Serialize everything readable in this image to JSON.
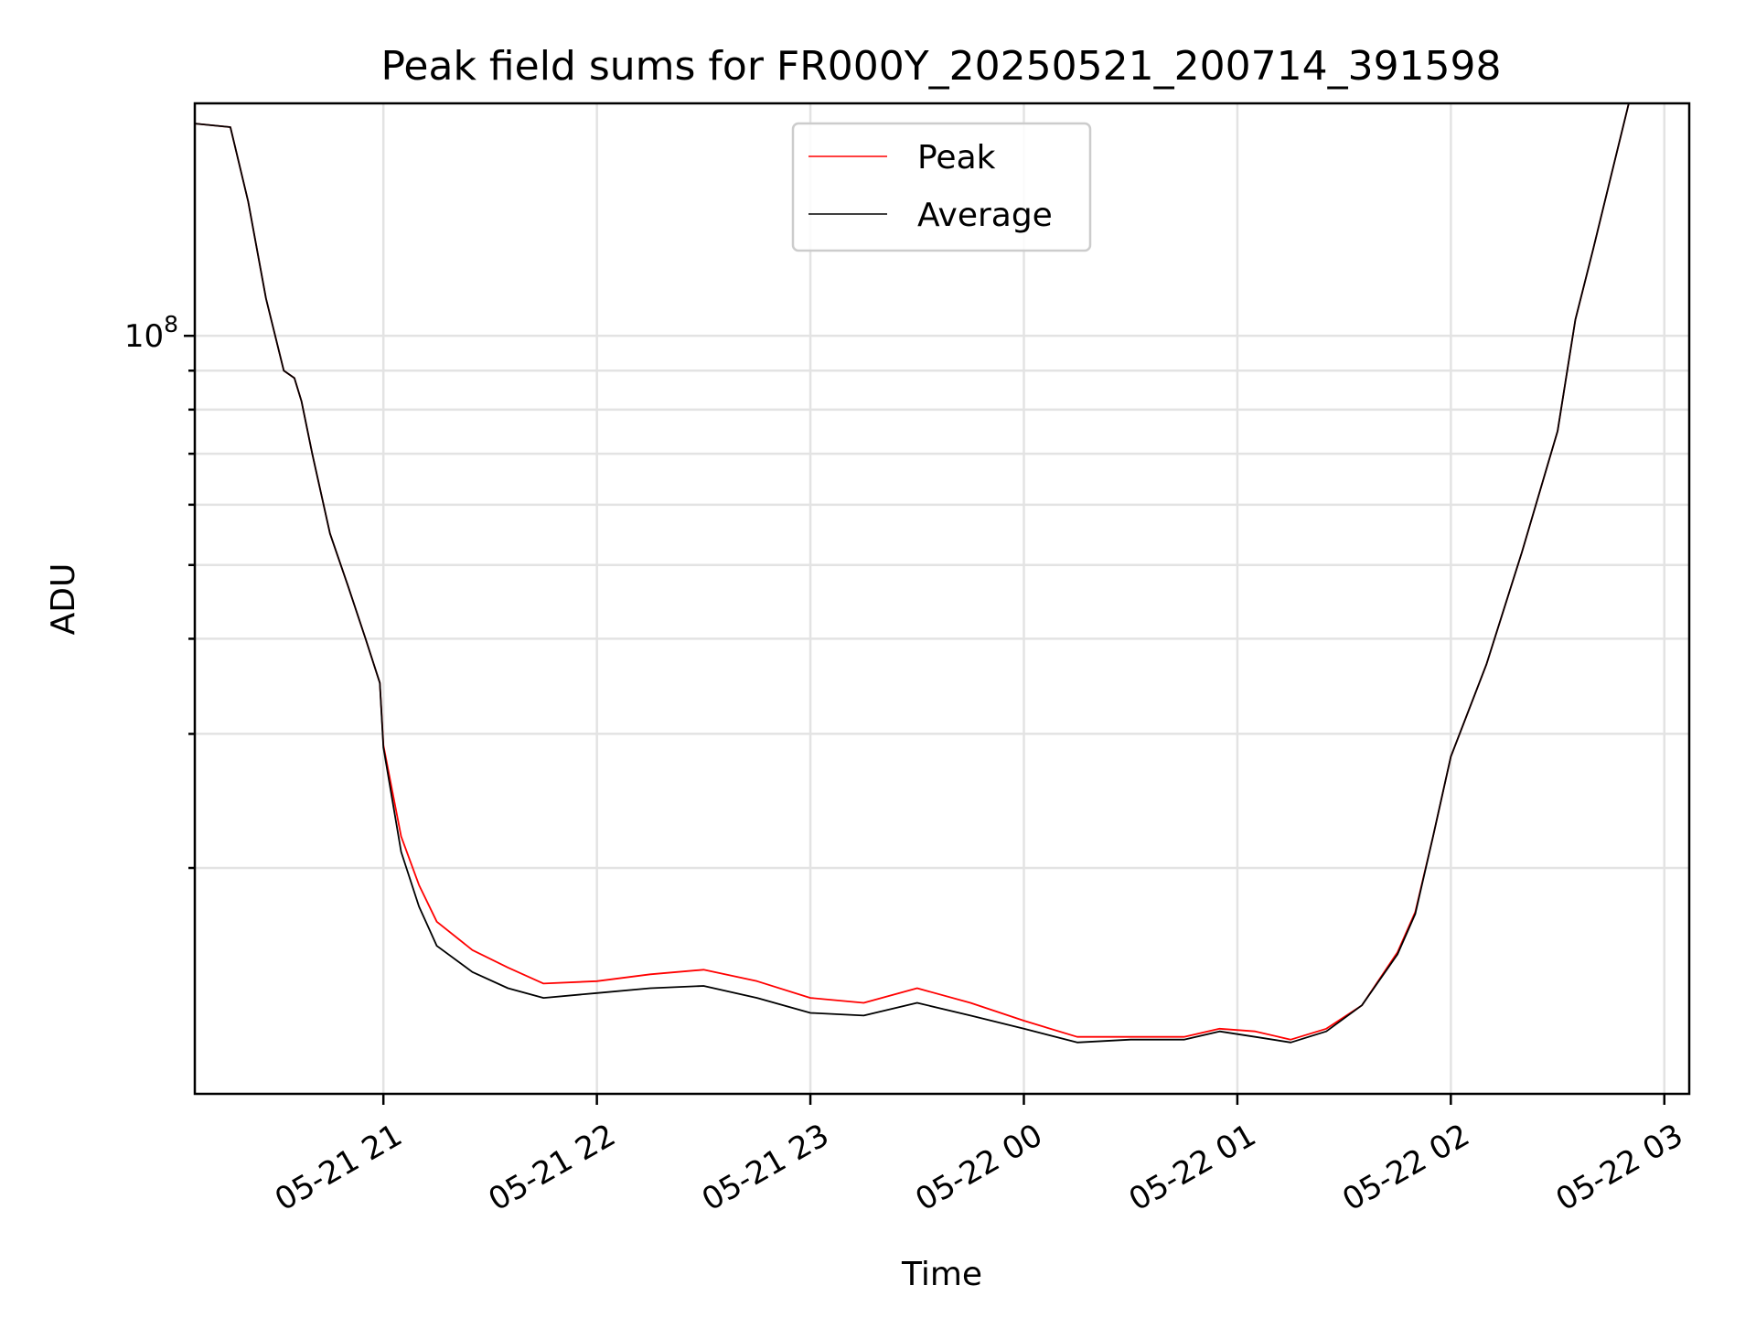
{
  "chart_data": {
    "type": "line",
    "title": "Peak field sums for FR000Y_20250521_200714_391598",
    "xlabel": "Time",
    "ylabel": "ADU",
    "y_scale": "log",
    "ylim": [
      10100000,
      202000000
    ],
    "xlim": [
      "2025-05-21 20:07",
      "2025-05-22 03:07"
    ],
    "x_ticks": [
      {
        "value": "2025-05-21 21:00",
        "label": "05-21 21"
      },
      {
        "value": "2025-05-21 22:00",
        "label": "05-21 22"
      },
      {
        "value": "2025-05-21 23:00",
        "label": "05-21 23"
      },
      {
        "value": "2025-05-22 00:00",
        "label": "05-22 00"
      },
      {
        "value": "2025-05-22 01:00",
        "label": "05-22 01"
      },
      {
        "value": "2025-05-22 02:00",
        "label": "05-22 02"
      },
      {
        "value": "2025-05-22 03:00",
        "label": "05-22 03"
      }
    ],
    "y_major_ticks": [
      {
        "value": 100000000,
        "label_base": "10",
        "label_exp": "8"
      }
    ],
    "y_minor_ticks": [
      20000000,
      30000000,
      40000000,
      50000000,
      60000000,
      70000000,
      80000000,
      90000000
    ],
    "grid": true,
    "legend_position": "top-center",
    "series": [
      {
        "name": "Peak",
        "color": "#ff0000",
        "x": [
          "2025-05-21 20:07",
          "2025-05-21 20:17",
          "2025-05-21 20:22",
          "2025-05-21 20:27",
          "2025-05-21 20:32",
          "2025-05-21 20:35",
          "2025-05-21 20:37",
          "2025-05-21 20:40",
          "2025-05-21 20:45",
          "2025-05-21 20:50",
          "2025-05-21 20:55",
          "2025-05-21 20:59",
          "2025-05-21 21:00",
          "2025-05-21 21:05",
          "2025-05-21 21:10",
          "2025-05-21 21:15",
          "2025-05-21 21:25",
          "2025-05-21 21:35",
          "2025-05-21 21:45",
          "2025-05-21 22:00",
          "2025-05-21 22:15",
          "2025-05-21 22:30",
          "2025-05-21 22:45",
          "2025-05-21 23:00",
          "2025-05-21 23:15",
          "2025-05-21 23:30",
          "2025-05-21 23:45",
          "2025-05-22 00:00",
          "2025-05-22 00:15",
          "2025-05-22 00:30",
          "2025-05-22 00:45",
          "2025-05-22 00:55",
          "2025-05-22 01:05",
          "2025-05-22 01:15",
          "2025-05-22 01:25",
          "2025-05-22 01:35",
          "2025-05-22 01:45",
          "2025-05-22 01:50",
          "2025-05-22 01:55",
          "2025-05-22 02:00",
          "2025-05-22 02:10",
          "2025-05-22 02:20",
          "2025-05-22 02:30",
          "2025-05-22 02:35",
          "2025-05-22 02:40",
          "2025-05-22 02:45",
          "2025-05-22 02:50"
        ],
        "values": [
          190000000,
          188000000,
          150000000,
          112000000,
          90000000,
          88000000,
          82000000,
          70000000,
          55000000,
          47000000,
          40000000,
          35000000,
          29000000,
          22000000,
          19000000,
          17000000,
          15600000,
          14800000,
          14100000,
          14200000,
          14500000,
          14700000,
          14200000,
          13500000,
          13300000,
          13900000,
          13300000,
          12600000,
          12000000,
          12000000,
          12000000,
          12300000,
          12200000,
          11900000,
          12300000,
          13200000,
          15500000,
          17500000,
          22000000,
          28000000,
          37000000,
          52000000,
          75000000,
          105000000,
          130000000,
          162000000,
          203000000
        ]
      },
      {
        "name": "Average",
        "color": "#000000",
        "x": [
          "2025-05-21 20:07",
          "2025-05-21 20:17",
          "2025-05-21 20:22",
          "2025-05-21 20:27",
          "2025-05-21 20:32",
          "2025-05-21 20:35",
          "2025-05-21 20:37",
          "2025-05-21 20:40",
          "2025-05-21 20:45",
          "2025-05-21 20:50",
          "2025-05-21 20:55",
          "2025-05-21 20:59",
          "2025-05-21 21:00",
          "2025-05-21 21:05",
          "2025-05-21 21:10",
          "2025-05-21 21:15",
          "2025-05-21 21:25",
          "2025-05-21 21:35",
          "2025-05-21 21:45",
          "2025-05-21 22:00",
          "2025-05-21 22:15",
          "2025-05-21 22:30",
          "2025-05-21 22:45",
          "2025-05-21 23:00",
          "2025-05-21 23:15",
          "2025-05-21 23:30",
          "2025-05-21 23:45",
          "2025-05-22 00:00",
          "2025-05-22 00:15",
          "2025-05-22 00:30",
          "2025-05-22 00:45",
          "2025-05-22 00:55",
          "2025-05-22 01:05",
          "2025-05-22 01:15",
          "2025-05-22 01:25",
          "2025-05-22 01:35",
          "2025-05-22 01:45",
          "2025-05-22 01:50",
          "2025-05-22 01:55",
          "2025-05-22 02:00",
          "2025-05-22 02:10",
          "2025-05-22 02:20",
          "2025-05-22 02:30",
          "2025-05-22 02:35",
          "2025-05-22 02:40",
          "2025-05-22 02:45",
          "2025-05-22 02:50"
        ],
        "values": [
          190000000,
          188000000,
          150000000,
          112000000,
          90000000,
          88000000,
          82000000,
          70000000,
          55000000,
          47000000,
          40000000,
          35000000,
          28800000,
          21000000,
          17800000,
          15800000,
          14600000,
          13900000,
          13500000,
          13700000,
          13900000,
          14000000,
          13500000,
          12900000,
          12800000,
          13300000,
          12800000,
          12300000,
          11800000,
          11900000,
          11900000,
          12200000,
          12000000,
          11800000,
          12200000,
          13200000,
          15400000,
          17400000,
          22000000,
          28000000,
          37000000,
          52000000,
          75000000,
          105000000,
          130000000,
          162000000,
          203000000
        ]
      }
    ]
  }
}
